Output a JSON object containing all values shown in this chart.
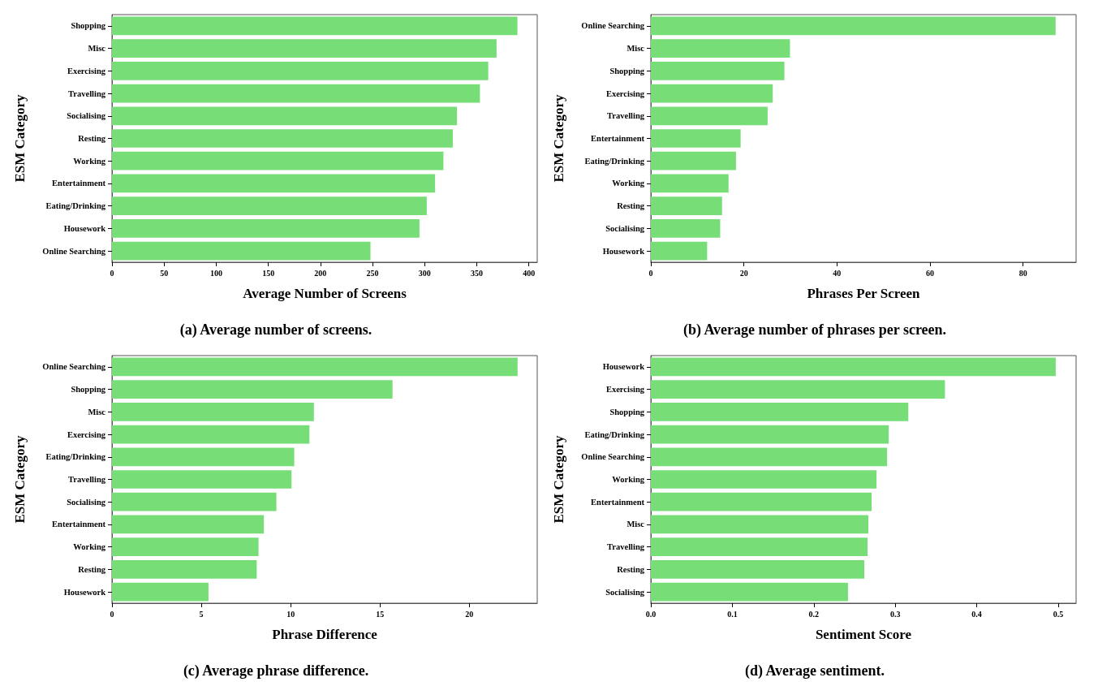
{
  "chart_data": [
    {
      "type": "bar",
      "orientation": "horizontal",
      "xlabel": "Average Number of Screens",
      "ylabel": "ESM Category",
      "categories": [
        "Shopping",
        "Misc",
        "Exercising",
        "Travelling",
        "Socialising",
        "Resting",
        "Working",
        "Entertainment",
        "Eating/Drinking",
        "Housework",
        "Online Searching"
      ],
      "values": [
        389,
        369,
        361,
        353,
        331,
        327,
        318,
        310,
        302,
        295,
        248
      ],
      "color": "#77dd77",
      "xlim": [
        0,
        408
      ],
      "xticks": [
        0,
        50,
        100,
        150,
        200,
        250,
        300,
        350,
        400
      ],
      "grid": false,
      "annotations": [
        "(a) Average number of screens."
      ]
    },
    {
      "type": "bar",
      "orientation": "horizontal",
      "xlabel": "Phrases Per Screen",
      "ylabel": "ESM Category",
      "categories": [
        "Online Searching",
        "Misc",
        "Shopping",
        "Exercising",
        "Travelling",
        "Entertainment",
        "Eating/Drinking",
        "Working",
        "Resting",
        "Socialising",
        "Housework"
      ],
      "values": [
        87,
        29.9,
        28.7,
        26.2,
        25.1,
        19.3,
        18.3,
        16.7,
        15.3,
        14.9,
        12.1
      ],
      "color": "#77dd77",
      "xlim": [
        0,
        91.4
      ],
      "xticks": [
        0,
        20,
        40,
        60,
        80
      ],
      "grid": false,
      "annotations": [
        "(b) Average number of phrases per screen."
      ]
    },
    {
      "type": "bar",
      "orientation": "horizontal",
      "xlabel": "Phrase Difference",
      "ylabel": "ESM Category",
      "categories": [
        "Online Searching",
        "Shopping",
        "Misc",
        "Exercising",
        "Eating/Drinking",
        "Travelling",
        "Socialising",
        "Entertainment",
        "Working",
        "Resting",
        "Housework"
      ],
      "values": [
        22.7,
        15.7,
        11.3,
        11.05,
        10.2,
        10.05,
        9.2,
        8.5,
        8.2,
        8.1,
        5.4
      ],
      "color": "#77dd77",
      "xlim": [
        0,
        23.8
      ],
      "xticks": [
        0,
        5,
        10,
        15,
        20
      ],
      "grid": false,
      "annotations": [
        "(c) Average phrase difference."
      ]
    },
    {
      "type": "bar",
      "orientation": "horizontal",
      "xlabel": "Sentiment Score",
      "ylabel": "ESM Category",
      "categories": [
        "Housework",
        "Exercising",
        "Shopping",
        "Eating/Drinking",
        "Online Searching",
        "Working",
        "Entertainment",
        "Misc",
        "Travelling",
        "Resting",
        "Socialising"
      ],
      "values": [
        0.497,
        0.361,
        0.316,
        0.292,
        0.29,
        0.277,
        0.271,
        0.267,
        0.266,
        0.262,
        0.242
      ],
      "color": "#77dd77",
      "xlim": [
        0,
        0.522
      ],
      "xticks": [
        {
          "value": 0,
          "label": "0.0"
        },
        0.1,
        0.2,
        0.3,
        0.4,
        0.5
      ],
      "grid": false,
      "annotations": [
        "(d) Average sentiment."
      ]
    }
  ]
}
